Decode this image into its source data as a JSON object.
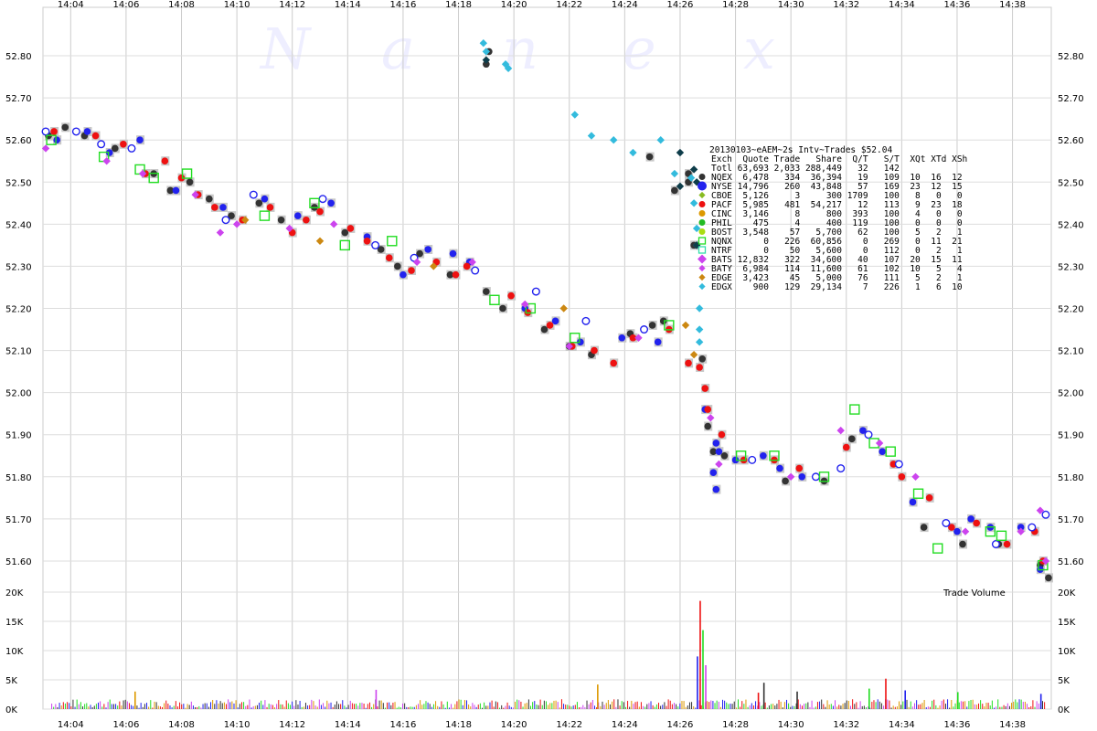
{
  "chart_data": {
    "type": "scatter",
    "watermark": [
      "N",
      "a",
      "n",
      "e",
      "x"
    ],
    "time_ticks": [
      "14:04",
      "14:06",
      "14:08",
      "14:10",
      "14:12",
      "14:14",
      "14:16",
      "14:18",
      "14:20",
      "14:22",
      "14:24",
      "14:26",
      "14:28",
      "14:30",
      "14:32",
      "14:34",
      "14:36",
      "14:38"
    ],
    "time_range_min": [
      843.0,
      879.4
    ],
    "price_axis": {
      "ylim": [
        51.55,
        52.85
      ],
      "ticks": [
        "52.80",
        "52.70",
        "52.60",
        "52.50",
        "52.40",
        "52.30",
        "52.20",
        "52.10",
        "52.00",
        "51.90",
        "51.80",
        "51.70",
        "51.60"
      ],
      "tick_values": [
        52.8,
        52.7,
        52.6,
        52.5,
        52.4,
        52.3,
        52.2,
        52.1,
        52.0,
        51.9,
        51.8,
        51.7,
        51.6
      ]
    },
    "volume_axis": {
      "ylim": [
        0,
        20000
      ],
      "ticks": [
        "20K",
        "15K",
        "10K",
        "5K",
        "0K"
      ],
      "tick_values": [
        20000,
        15000,
        10000,
        5000,
        0
      ],
      "label": "Trade Volume"
    },
    "legend": {
      "title": "20130103~eAEM~2s Intv~Trades $52.04",
      "header": "Exch  Quote Trade   Share  Q/T   S/T  XQt XTd XSh",
      "total": "Totl 63,693 2,033 288,449   32   142",
      "rows": [
        {
          "text": "NQEX  6,478   334  36,394   19   109  10  16  12",
          "color": "#333333",
          "marker": "circle"
        },
        {
          "text": "NYSE 14,796   260  43,848   57   169  23  12  15",
          "color": "#2222ee",
          "marker": "circle-lg"
        },
        {
          "text": "CBOE  5,126     3     300 1709   100   8   0   0",
          "color": "#88bb22",
          "marker": "diamond"
        },
        {
          "text": "PACF  5,985   481  54,217   12   113   9  23  18",
          "color": "#ee1111",
          "marker": "circle"
        },
        {
          "text": "CINC  3,146     8     800  393   100   4   0   0",
          "color": "#dd9900",
          "marker": "circle"
        },
        {
          "text": "PHIL    475     4     400  119   100   0   0   0",
          "color": "#22bb22",
          "marker": "circle"
        },
        {
          "text": "BOST  3,548    57   5,700   62   100   5   2   1",
          "color": "#aadd11",
          "marker": "circle"
        },
        {
          "text": "NQNX      0   226  60,856    0   269   0  11  21",
          "color": "#22dd22",
          "marker": "square"
        },
        {
          "text": "NTRF      0    50   5,600    0   112   0   2   1",
          "color": "#33ddaa",
          "marker": "square"
        },
        {
          "text": "BATS 12,832   322  34,600   40   107  20  15  11",
          "color": "#cc44ee",
          "marker": "diamond-lg"
        },
        {
          "text": "BATY  6,984   114  11,600   61   102  10   5   4",
          "color": "#cc44ee",
          "marker": "diamond"
        },
        {
          "text": "EDGE  3,423    45   5,000   76   111   5   2   1",
          "color": "#cc8811",
          "marker": "diamond"
        },
        {
          "text": "EDGX    900   129  29,134    7   226   1   6  10",
          "color": "#33bbdd",
          "marker": "diamond"
        }
      ]
    },
    "series": [
      {
        "name": "NQEX",
        "color": "#333333",
        "shape": "circle",
        "points": [
          [
            843.2,
            52.61
          ],
          [
            843.8,
            52.63
          ],
          [
            844.5,
            52.61
          ],
          [
            845.6,
            52.58
          ],
          [
            847.0,
            52.52
          ],
          [
            847.6,
            52.48
          ],
          [
            848.3,
            52.5
          ],
          [
            849.0,
            52.46
          ],
          [
            849.8,
            52.42
          ],
          [
            850.8,
            52.45
          ],
          [
            851.6,
            52.41
          ],
          [
            852.8,
            52.44
          ],
          [
            853.9,
            52.38
          ],
          [
            855.2,
            52.34
          ],
          [
            855.8,
            52.3
          ],
          [
            856.6,
            52.33
          ],
          [
            857.7,
            52.28
          ],
          [
            859.0,
            52.24
          ],
          [
            859.6,
            52.2
          ],
          [
            861.1,
            52.15
          ],
          [
            862.0,
            52.11
          ],
          [
            862.8,
            52.09
          ],
          [
            864.2,
            52.14
          ],
          [
            865.0,
            52.16
          ],
          [
            865.4,
            52.17
          ],
          [
            866.8,
            52.08
          ],
          [
            867.0,
            51.92
          ],
          [
            867.2,
            51.86
          ],
          [
            867.6,
            51.85
          ],
          [
            869.8,
            51.79
          ],
          [
            871.2,
            51.79
          ],
          [
            872.2,
            51.89
          ],
          [
            874.8,
            51.68
          ],
          [
            876.2,
            51.64
          ],
          [
            877.5,
            51.64
          ],
          [
            879.0,
            51.59
          ],
          [
            879.3,
            51.56
          ],
          [
            864.9,
            52.56
          ],
          [
            866.3,
            52.52
          ],
          [
            866.3,
            52.5
          ],
          [
            866.5,
            52.35
          ],
          [
            865.8,
            52.48
          ],
          [
            859.0,
            52.78
          ],
          [
            859.1,
            52.81
          ]
        ]
      },
      {
        "name": "NYSE",
        "color": "#2222ee",
        "shape": "circle",
        "points": [
          [
            843.5,
            52.6
          ],
          [
            844.6,
            52.62
          ],
          [
            845.4,
            52.57
          ],
          [
            846.5,
            52.6
          ],
          [
            847.8,
            52.48
          ],
          [
            849.5,
            52.44
          ],
          [
            851.0,
            52.46
          ],
          [
            852.2,
            52.42
          ],
          [
            853.4,
            52.45
          ],
          [
            854.7,
            52.37
          ],
          [
            856.0,
            52.28
          ],
          [
            856.9,
            52.34
          ],
          [
            857.8,
            52.33
          ],
          [
            858.4,
            52.31
          ],
          [
            860.4,
            52.2
          ],
          [
            861.5,
            52.17
          ],
          [
            862.4,
            52.12
          ],
          [
            863.9,
            52.13
          ],
          [
            865.2,
            52.12
          ],
          [
            866.9,
            51.96
          ],
          [
            867.3,
            51.88
          ],
          [
            867.4,
            51.86
          ],
          [
            867.2,
            51.81
          ],
          [
            867.3,
            51.77
          ],
          [
            868.0,
            51.84
          ],
          [
            869.0,
            51.85
          ],
          [
            869.6,
            51.82
          ],
          [
            870.4,
            51.8
          ],
          [
            872.6,
            51.91
          ],
          [
            873.3,
            51.86
          ],
          [
            874.4,
            51.74
          ],
          [
            876.0,
            51.67
          ],
          [
            876.5,
            51.7
          ],
          [
            877.2,
            51.68
          ],
          [
            878.3,
            51.68
          ],
          [
            879.0,
            51.58
          ]
        ]
      },
      {
        "name": "PACF",
        "color": "#ee1111",
        "shape": "circle",
        "points": [
          [
            843.4,
            52.62
          ],
          [
            844.9,
            52.61
          ],
          [
            845.9,
            52.59
          ],
          [
            846.7,
            52.52
          ],
          [
            847.4,
            52.55
          ],
          [
            848.0,
            52.51
          ],
          [
            848.6,
            52.47
          ],
          [
            849.2,
            52.44
          ],
          [
            850.2,
            52.41
          ],
          [
            851.2,
            52.44
          ],
          [
            852.0,
            52.38
          ],
          [
            852.5,
            52.41
          ],
          [
            853.0,
            52.43
          ],
          [
            854.1,
            52.39
          ],
          [
            854.7,
            52.36
          ],
          [
            855.5,
            52.32
          ],
          [
            856.3,
            52.29
          ],
          [
            857.2,
            52.31
          ],
          [
            857.9,
            52.28
          ],
          [
            858.3,
            52.3
          ],
          [
            859.9,
            52.23
          ],
          [
            860.5,
            52.19
          ],
          [
            861.3,
            52.16
          ],
          [
            862.1,
            52.11
          ],
          [
            862.9,
            52.1
          ],
          [
            863.6,
            52.07
          ],
          [
            864.3,
            52.13
          ],
          [
            865.6,
            52.15
          ],
          [
            866.3,
            52.07
          ],
          [
            866.7,
            52.06
          ],
          [
            866.9,
            52.01
          ],
          [
            867.0,
            51.96
          ],
          [
            867.5,
            51.9
          ],
          [
            868.3,
            51.84
          ],
          [
            869.4,
            51.84
          ],
          [
            870.3,
            51.82
          ],
          [
            872.0,
            51.87
          ],
          [
            873.7,
            51.83
          ],
          [
            874.0,
            51.8
          ],
          [
            875.0,
            51.75
          ],
          [
            875.8,
            51.68
          ],
          [
            876.7,
            51.69
          ],
          [
            877.8,
            51.64
          ],
          [
            878.8,
            51.67
          ],
          [
            879.1,
            51.6
          ]
        ]
      },
      {
        "name": "NYSE-hollow",
        "color": "#2222ee",
        "shape": "ring",
        "points": [
          [
            843.1,
            52.62
          ],
          [
            844.2,
            52.62
          ],
          [
            845.1,
            52.59
          ],
          [
            846.2,
            52.58
          ],
          [
            849.6,
            52.41
          ],
          [
            850.6,
            52.47
          ],
          [
            853.1,
            52.46
          ],
          [
            855.0,
            52.35
          ],
          [
            856.4,
            52.32
          ],
          [
            858.6,
            52.29
          ],
          [
            860.8,
            52.24
          ],
          [
            862.6,
            52.17
          ],
          [
            864.7,
            52.15
          ],
          [
            868.6,
            51.84
          ],
          [
            870.9,
            51.8
          ],
          [
            871.8,
            51.82
          ],
          [
            872.8,
            51.9
          ],
          [
            873.9,
            51.83
          ],
          [
            875.6,
            51.69
          ],
          [
            877.4,
            51.64
          ],
          [
            878.7,
            51.68
          ],
          [
            879.2,
            51.71
          ]
        ]
      },
      {
        "name": "NQNX",
        "color": "#22dd22",
        "shape": "square",
        "points": [
          [
            843.3,
            52.6
          ],
          [
            845.2,
            52.56
          ],
          [
            846.5,
            52.53
          ],
          [
            847.0,
            52.51
          ],
          [
            848.2,
            52.52
          ],
          [
            851.0,
            52.42
          ],
          [
            852.8,
            52.45
          ],
          [
            853.9,
            52.35
          ],
          [
            855.6,
            52.36
          ],
          [
            859.3,
            52.22
          ],
          [
            860.6,
            52.2
          ],
          [
            862.2,
            52.13
          ],
          [
            865.6,
            52.16
          ],
          [
            868.2,
            51.85
          ],
          [
            869.4,
            51.85
          ],
          [
            871.2,
            51.8
          ],
          [
            872.3,
            51.96
          ],
          [
            873.0,
            51.88
          ],
          [
            873.6,
            51.86
          ],
          [
            874.6,
            51.76
          ],
          [
            875.3,
            51.63
          ],
          [
            877.2,
            51.67
          ],
          [
            877.6,
            51.66
          ],
          [
            879.1,
            51.59
          ]
        ]
      },
      {
        "name": "BATS",
        "color": "#cc44ee",
        "shape": "diamond",
        "points": [
          [
            843.1,
            52.58
          ],
          [
            845.3,
            52.55
          ],
          [
            846.6,
            52.52
          ],
          [
            848.5,
            52.47
          ],
          [
            849.4,
            52.38
          ],
          [
            850.0,
            52.4
          ],
          [
            851.9,
            52.39
          ],
          [
            853.5,
            52.4
          ],
          [
            856.5,
            52.31
          ],
          [
            858.5,
            52.31
          ],
          [
            860.4,
            52.21
          ],
          [
            862.0,
            52.11
          ],
          [
            864.5,
            52.13
          ],
          [
            867.1,
            51.94
          ],
          [
            867.4,
            51.83
          ],
          [
            870.0,
            51.8
          ],
          [
            871.8,
            51.91
          ],
          [
            873.2,
            51.88
          ],
          [
            874.5,
            51.8
          ],
          [
            876.3,
            51.67
          ],
          [
            878.3,
            51.67
          ],
          [
            879.0,
            51.72
          ],
          [
            879.2,
            51.6
          ]
        ]
      },
      {
        "name": "EDGE",
        "color": "#cc8811",
        "shape": "diamond",
        "points": [
          [
            850.3,
            52.41
          ],
          [
            853.0,
            52.36
          ],
          [
            857.1,
            52.3
          ],
          [
            861.8,
            52.2
          ],
          [
            866.2,
            52.16
          ],
          [
            866.5,
            52.09
          ]
        ]
      },
      {
        "name": "EDGX",
        "color": "#33bbdd",
        "shape": "diamond",
        "points": [
          [
            858.9,
            52.83
          ],
          [
            859.0,
            52.81
          ],
          [
            859.7,
            52.78
          ],
          [
            859.8,
            52.77
          ],
          [
            862.2,
            52.66
          ],
          [
            862.8,
            52.61
          ],
          [
            863.6,
            52.6
          ],
          [
            864.3,
            52.57
          ],
          [
            865.3,
            52.6
          ],
          [
            865.8,
            52.52
          ],
          [
            866.4,
            52.51
          ],
          [
            866.5,
            52.45
          ],
          [
            866.6,
            52.39
          ],
          [
            866.6,
            52.35
          ],
          [
            866.7,
            52.2
          ],
          [
            866.7,
            52.15
          ],
          [
            866.7,
            52.12
          ]
        ]
      },
      {
        "name": "EDGX-dark",
        "color": "#0e3d4a",
        "shape": "diamond",
        "points": [
          [
            859.0,
            52.79
          ],
          [
            866.0,
            52.57
          ],
          [
            866.5,
            52.53
          ],
          [
            866.6,
            52.5
          ],
          [
            866.0,
            52.49
          ],
          [
            866.6,
            52.35
          ]
        ]
      }
    ],
    "quote_band_color": "#c8c8c8",
    "volume_spikes": [
      [
        866.7,
        18500
      ],
      [
        866.8,
        13500
      ],
      [
        866.6,
        9000
      ],
      [
        866.9,
        7500
      ],
      [
        863.0,
        4200
      ],
      [
        869.0,
        4500
      ],
      [
        873.4,
        5200
      ],
      [
        872.8,
        3500
      ],
      [
        874.1,
        3200
      ],
      [
        855.0,
        3300
      ],
      [
        846.3,
        3000
      ],
      [
        870.2,
        3000
      ],
      [
        868.8,
        2800
      ],
      [
        876.0,
        2900
      ],
      [
        879.0,
        2600
      ]
    ]
  }
}
